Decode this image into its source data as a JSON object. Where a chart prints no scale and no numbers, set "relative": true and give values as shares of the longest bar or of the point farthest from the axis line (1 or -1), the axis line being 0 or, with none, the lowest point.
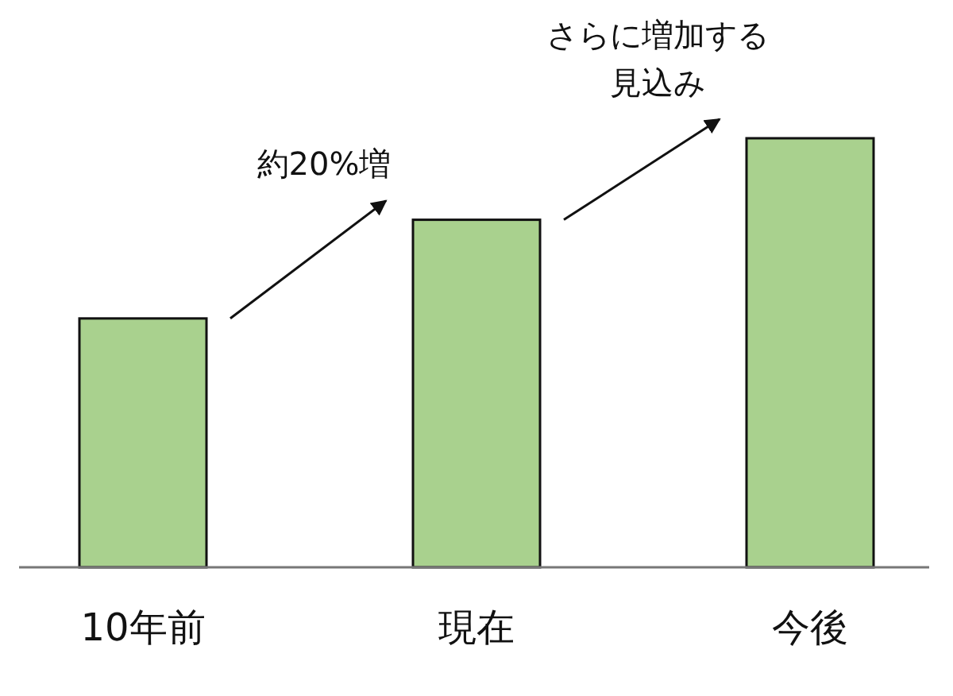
{
  "chart_data": {
    "type": "bar",
    "relative": true,
    "color": "#a9d18e",
    "categories": [
      "10年前",
      "現在",
      "今後"
    ],
    "values": [
      0.58,
      0.81,
      1
    ],
    "annotations": [
      "約20%増",
      "さらに増加する見込み"
    ]
  }
}
